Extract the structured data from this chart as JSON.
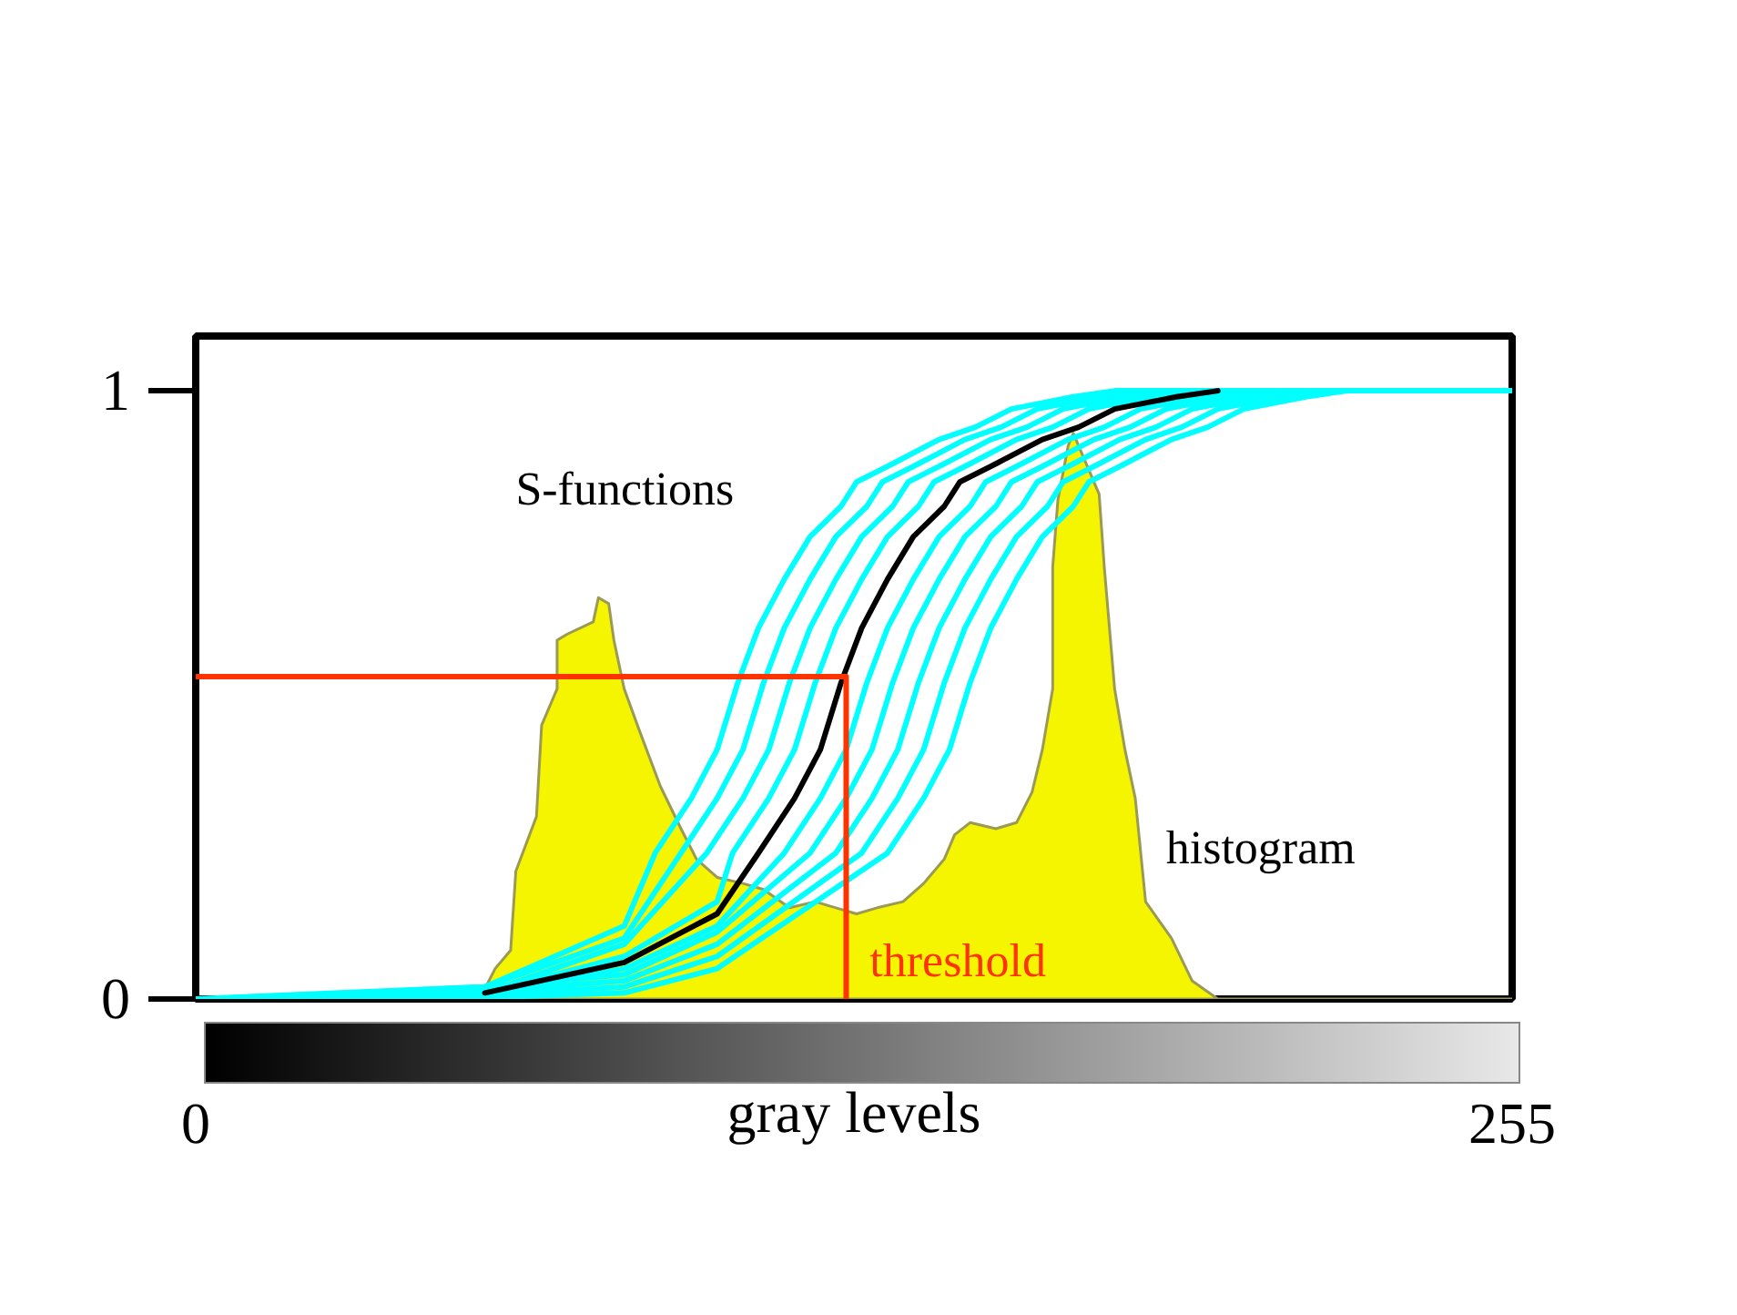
{
  "chart_data": {
    "type": "line",
    "xlabel": "gray levels",
    "xlim": [
      0,
      255
    ],
    "xticks": [
      0,
      255
    ],
    "ylim": [
      0,
      1.09
    ],
    "yticks": [
      0,
      1
    ],
    "series": [
      {
        "type": "area",
        "name": "histogram",
        "color": "#f5f500",
        "x": [
          0,
          55,
          58,
          61,
          62,
          66,
          67,
          70,
          70,
          72,
          77,
          78,
          80,
          81,
          83,
          86,
          90,
          94,
          97,
          101,
          106,
          110,
          115,
          120,
          124,
          128,
          132,
          137,
          141,
          145,
          147,
          150,
          155,
          159,
          162,
          164,
          166,
          166,
          167,
          169,
          170,
          173,
          175,
          176,
          178,
          180,
          182,
          184,
          189,
          193,
          198,
          255
        ],
        "values": [
          0,
          0,
          0.05,
          0.08,
          0.21,
          0.3,
          0.45,
          0.51,
          0.59,
          0.6,
          0.62,
          0.66,
          0.65,
          0.59,
          0.51,
          0.44,
          0.35,
          0.28,
          0.23,
          0.2,
          0.19,
          0.18,
          0.15,
          0.16,
          0.15,
          0.14,
          0.15,
          0.16,
          0.19,
          0.23,
          0.27,
          0.29,
          0.28,
          0.29,
          0.34,
          0.41,
          0.51,
          0.71,
          0.82,
          0.91,
          0.93,
          0.87,
          0.83,
          0.71,
          0.51,
          0.41,
          0.33,
          0.16,
          0.1,
          0.03,
          0,
          0
        ]
      },
      {
        "name": "S-functions",
        "color": "#00ffff",
        "x": [
          0,
          56,
          83,
          89,
          96,
          101,
          105,
          109,
          114,
          119,
          125,
          128,
          135,
          144,
          151,
          158,
          170,
          178,
          255
        ],
        "values": [
          0,
          0.02,
          0.12,
          0.24,
          0.33,
          0.41,
          0.52,
          0.61,
          0.69,
          0.76,
          0.81,
          0.85,
          0.88,
          0.92,
          0.94,
          0.97,
          0.99,
          1.0,
          1.0
        ]
      },
      {
        "color": "#00ffff",
        "x": [
          6,
          56,
          83,
          94,
          101,
          106,
          110,
          114,
          119,
          124,
          130,
          133,
          140,
          149,
          156,
          163,
          175,
          183,
          255
        ],
        "values": [
          0,
          0.02,
          0.1,
          0.24,
          0.33,
          0.41,
          0.52,
          0.61,
          0.69,
          0.76,
          0.81,
          0.85,
          0.88,
          0.92,
          0.94,
          0.97,
          0.99,
          1.0,
          1.0
        ]
      },
      {
        "color": "#00ffff",
        "x": [
          12,
          56,
          83,
          99,
          106,
          111,
          115,
          119,
          124,
          129,
          135,
          138,
          145,
          154,
          161,
          168,
          180,
          188,
          255
        ],
        "values": [
          0,
          0.01,
          0.09,
          0.24,
          0.33,
          0.41,
          0.52,
          0.61,
          0.69,
          0.76,
          0.81,
          0.85,
          0.88,
          0.92,
          0.94,
          0.97,
          0.99,
          1.0,
          1.0
        ]
      },
      {
        "color": "#00ffff",
        "x": [
          18,
          56,
          83,
          101,
          104,
          111,
          116,
          120,
          124,
          129,
          134,
          140,
          143,
          150,
          159,
          166,
          173,
          185,
          193,
          255
        ],
        "values": [
          0,
          0.01,
          0.07,
          0.16,
          0.24,
          0.33,
          0.41,
          0.52,
          0.61,
          0.69,
          0.76,
          0.81,
          0.85,
          0.88,
          0.92,
          0.94,
          0.97,
          0.99,
          1.0,
          1.0
        ]
      },
      {
        "color": "#00ffff",
        "x": [
          24,
          56,
          83,
          101,
          114,
          121,
          126,
          130,
          134,
          139,
          144,
          150,
          153,
          160,
          169,
          176,
          183,
          195,
          203,
          255
        ],
        "values": [
          0,
          0.01,
          0.05,
          0.12,
          0.24,
          0.33,
          0.41,
          0.52,
          0.61,
          0.69,
          0.76,
          0.81,
          0.85,
          0.88,
          0.92,
          0.94,
          0.97,
          0.99,
          1.0,
          1.0
        ]
      },
      {
        "color": "#00ffff",
        "x": [
          30,
          83,
          101,
          119,
          126,
          131,
          135,
          139,
          144,
          149,
          155,
          158,
          165,
          174,
          181,
          188,
          200,
          208,
          255
        ],
        "values": [
          0,
          0.04,
          0.11,
          0.24,
          0.33,
          0.41,
          0.52,
          0.61,
          0.69,
          0.76,
          0.81,
          0.85,
          0.88,
          0.92,
          0.94,
          0.97,
          0.99,
          1.0,
          1.0
        ]
      },
      {
        "color": "#00ffff",
        "x": [
          36,
          83,
          101,
          124,
          131,
          136,
          140,
          144,
          149,
          154,
          160,
          163,
          170,
          179,
          186,
          193,
          205,
          213,
          255
        ],
        "values": [
          0,
          0.03,
          0.09,
          0.24,
          0.33,
          0.41,
          0.52,
          0.61,
          0.69,
          0.76,
          0.81,
          0.85,
          0.88,
          0.92,
          0.94,
          0.97,
          0.99,
          1.0,
          1.0
        ]
      },
      {
        "color": "#00ffff",
        "x": [
          42,
          83,
          101,
          129,
          136,
          141,
          145,
          149,
          154,
          159,
          165,
          168,
          175,
          184,
          191,
          198,
          210,
          218,
          255
        ],
        "values": [
          0,
          0.02,
          0.07,
          0.24,
          0.33,
          0.41,
          0.52,
          0.61,
          0.69,
          0.76,
          0.81,
          0.85,
          0.88,
          0.92,
          0.94,
          0.97,
          0.99,
          1.0,
          1.0
        ]
      },
      {
        "color": "#00ffff",
        "x": [
          48,
          83,
          101,
          134,
          141,
          146,
          150,
          154,
          159,
          164,
          170,
          173,
          180,
          189,
          196,
          203,
          215,
          223,
          255
        ],
        "values": [
          0,
          0.01,
          0.05,
          0.24,
          0.33,
          0.41,
          0.52,
          0.61,
          0.69,
          0.76,
          0.81,
          0.85,
          0.88,
          0.92,
          0.94,
          0.97,
          0.99,
          1.0,
          1.0
        ]
      },
      {
        "color": "#000000",
        "x": [
          56,
          83,
          101,
          109,
          116,
          121,
          125,
          129,
          134,
          139,
          145,
          148,
          155,
          164,
          171,
          178,
          190,
          198
        ],
        "values": [
          0.01,
          0.06,
          0.14,
          0.24,
          0.33,
          0.41,
          0.52,
          0.61,
          0.69,
          0.76,
          0.81,
          0.85,
          0.88,
          0.92,
          0.94,
          0.97,
          0.99,
          1.0
        ]
      },
      {
        "name": "threshold",
        "color": "#ff3300",
        "x": [
          0,
          126,
          126
        ],
        "values": [
          0.53,
          0.53,
          0
        ]
      }
    ]
  }
}
